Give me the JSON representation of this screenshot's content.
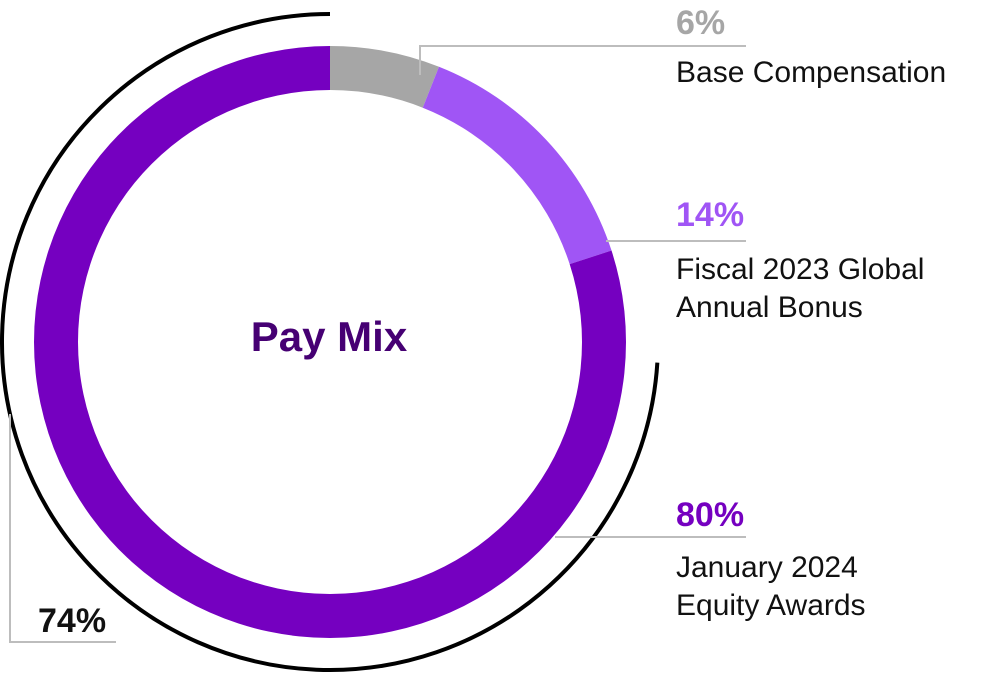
{
  "chart_data": {
    "type": "pie",
    "title": "Pay Mix",
    "slices": [
      {
        "label": "Base Compensation",
        "value": 6,
        "value_label": "6%",
        "color": "#a6a6a6"
      },
      {
        "label": "Fiscal 2023 Global Annual Bonus",
        "label_lines": [
          "Fiscal 2023 Global",
          "Annual Bonus"
        ],
        "value": 14,
        "value_label": "14%",
        "color": "#a055f5"
      },
      {
        "label": "January 2024 Equity Awards",
        "label_lines": [
          "January 2024",
          "Equity Awards"
        ],
        "value": 80,
        "value_label": "80%",
        "color": "#7500c0"
      }
    ],
    "bracket": {
      "value": 74,
      "value_label": "74%",
      "color": "#000000"
    },
    "colors": {
      "title": "#460073",
      "leader": "#bdbdbd",
      "text": "#111111"
    }
  }
}
